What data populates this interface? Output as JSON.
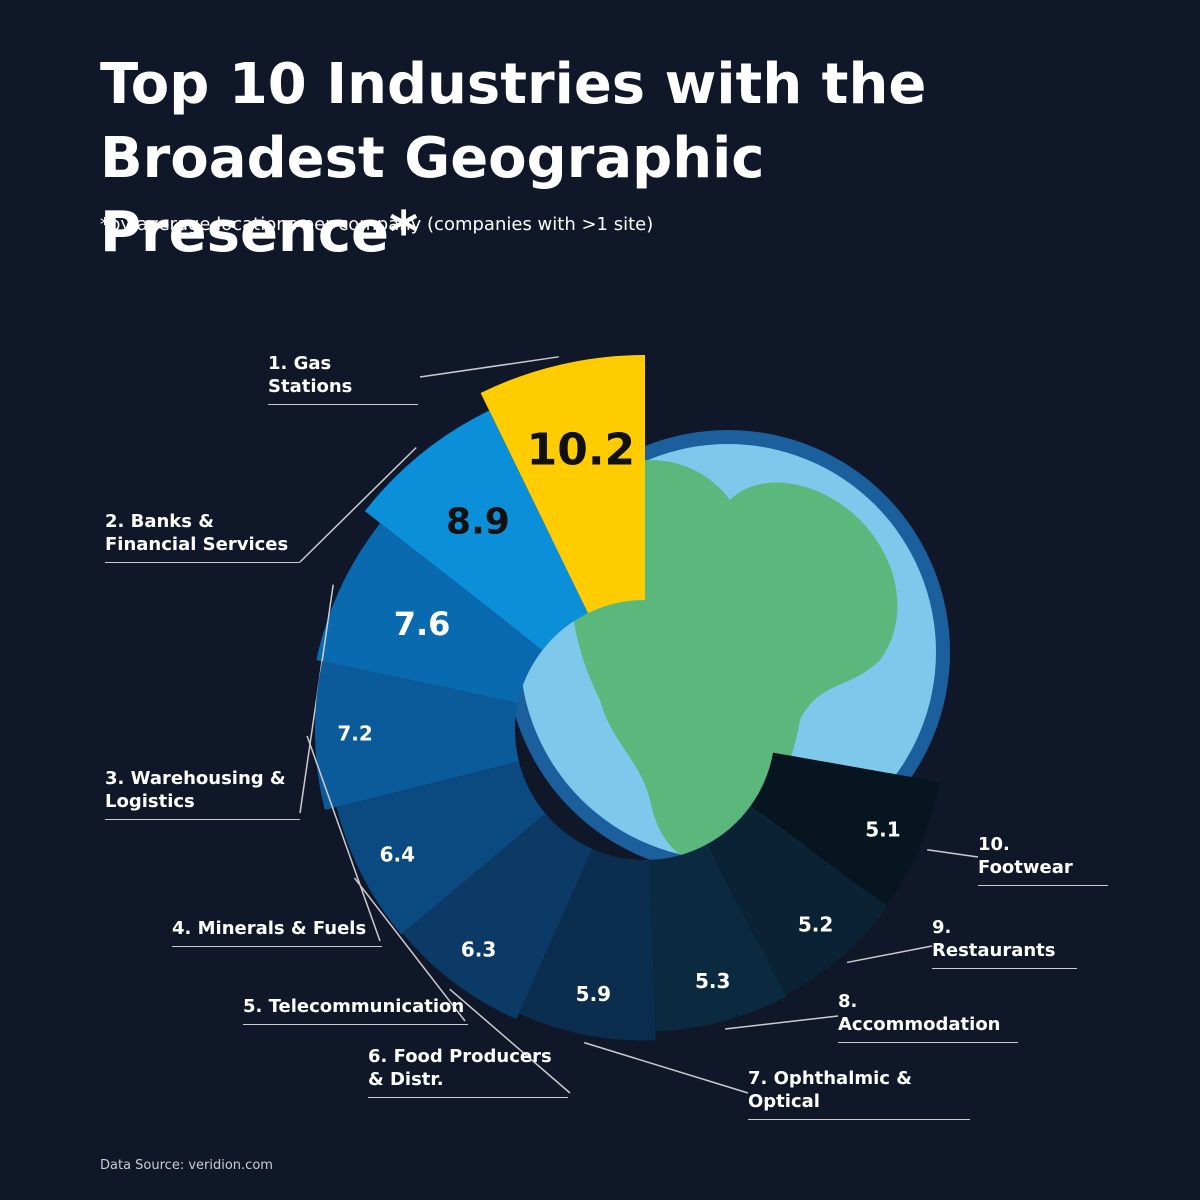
{
  "chart_data": {
    "type": "radial-bar",
    "title": "Top 10 Industries with the Broadest Geographic Presence*",
    "subtitle": "*by average locations per company (companies with >1 site)",
    "source": "Data Source: veridion.com",
    "categories": [
      "1. Gas Stations",
      "2. Banks & Financial Services",
      "3. Warehousing & Logistics",
      "4. Minerals & Fuels",
      "5. Telecommunication",
      "6. Food Producers & Distr.",
      "7. Ophthalmic & Optical",
      "8. Accommodation",
      "9. Restaurants",
      "10. Footwear"
    ],
    "values": [
      10.2,
      8.9,
      7.6,
      7.2,
      6.4,
      6.3,
      5.9,
      5.3,
      5.2,
      5.1
    ],
    "colors": [
      "#ffcc00",
      "#0a8fd8",
      "#0a6ab0",
      "#0b5a9a",
      "#0b4a80",
      "#0c3a66",
      "#0b2e4f",
      "#0b2a40",
      "#0a2233",
      "#071520"
    ]
  }
}
